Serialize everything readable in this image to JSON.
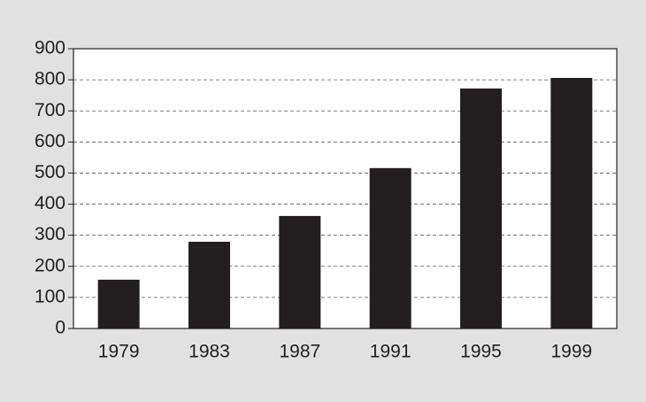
{
  "chart_data": {
    "type": "bar",
    "categories": [
      "1979",
      "1983",
      "1987",
      "1991",
      "1995",
      "1999"
    ],
    "values": [
      157,
      279,
      362,
      516,
      772,
      806
    ],
    "color": "#231f20",
    "ylim": [
      0,
      900
    ],
    "yticks": [
      0,
      100,
      200,
      300,
      400,
      500,
      600,
      700,
      800,
      900
    ],
    "grid": true
  }
}
